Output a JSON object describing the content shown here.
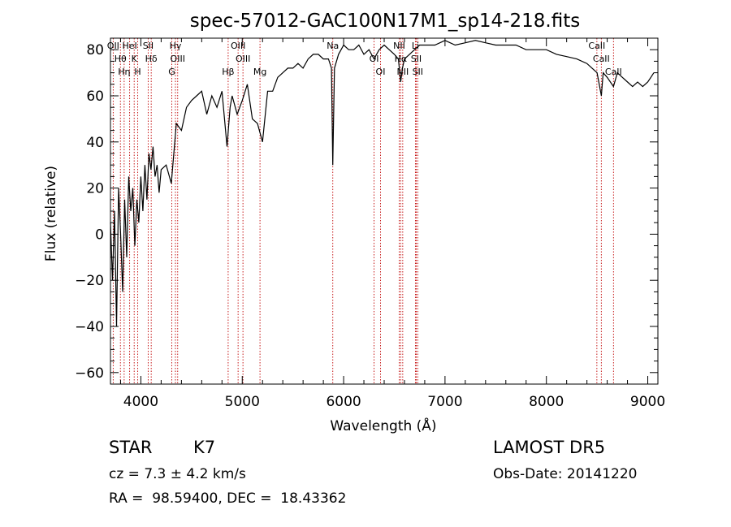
{
  "chart_data": {
    "type": "line",
    "title": "spec-57012-GAC100N17M1_sp14-218.fits",
    "xlabel": "Wavelength (Å)",
    "ylabel": "Flux (relative)",
    "xlim": [
      3700,
      9100
    ],
    "ylim": [
      -65,
      85
    ],
    "xticks": [
      "4000",
      "5000",
      "6000",
      "7000",
      "8000",
      "9000"
    ],
    "yticks": [
      "-60",
      "-40",
      "-20",
      "0",
      "20",
      "40",
      "60",
      "80"
    ],
    "line_color": "#000000",
    "marker_color": "#c00000",
    "series": [
      {
        "x": [
          3700,
          3720,
          3740,
          3760,
          3780,
          3800,
          3820,
          3840,
          3860,
          3880,
          3900,
          3920,
          3940,
          3960,
          3980,
          4000,
          4020,
          4040,
          4060,
          4080,
          4100,
          4120,
          4140,
          4160,
          4180,
          4200,
          4250,
          4300,
          4350,
          4400,
          4450,
          4500,
          4550,
          4600,
          4650,
          4700,
          4750,
          4800,
          4850,
          4880,
          4900,
          4950,
          5000,
          5050,
          5100,
          5150,
          5200,
          5250,
          5300,
          5350,
          5400,
          5450,
          5500,
          5550,
          5600,
          5650,
          5700,
          5750,
          5800,
          5850,
          5880,
          5893,
          5910,
          5950,
          6000,
          6050,
          6100,
          6150,
          6200,
          6250,
          6300,
          6350,
          6400,
          6450,
          6500,
          6540,
          6563,
          6580,
          6600,
          6650,
          6700,
          6750,
          6800,
          6900,
          7000,
          7100,
          7200,
          7300,
          7400,
          7500,
          7600,
          7700,
          7800,
          7900,
          8000,
          8100,
          8200,
          8300,
          8400,
          8450,
          8500,
          8542,
          8560,
          8600,
          8662,
          8700,
          8750,
          8800,
          8850,
          8900,
          8950,
          9000,
          9030,
          9060
        ],
        "y": [
          5,
          -20,
          10,
          -40,
          20,
          0,
          -25,
          15,
          -10,
          25,
          10,
          20,
          -5,
          15,
          5,
          25,
          10,
          30,
          15,
          35,
          28,
          38,
          25,
          30,
          18,
          28,
          30,
          22,
          48,
          45,
          55,
          58,
          60,
          62,
          52,
          60,
          55,
          62,
          38,
          55,
          60,
          52,
          58,
          65,
          50,
          48,
          40,
          62,
          62,
          68,
          70,
          72,
          72,
          74,
          72,
          76,
          78,
          78,
          76,
          76,
          72,
          30,
          72,
          78,
          82,
          80,
          80,
          82,
          78,
          80,
          76,
          80,
          82,
          80,
          78,
          76,
          66,
          72,
          76,
          78,
          80,
          82,
          82,
          82,
          84,
          82,
          83,
          84,
          83,
          82,
          82,
          82,
          80,
          80,
          80,
          78,
          77,
          76,
          74,
          72,
          70,
          60,
          70,
          68,
          64,
          70,
          68,
          66,
          64,
          66,
          64,
          66,
          68,
          70
        ]
      }
    ],
    "line_markers": [
      {
        "x": 3727,
        "label": "OII"
      },
      {
        "x": 3798,
        "label": "Hθ"
      },
      {
        "x": 3835,
        "label": "Hη"
      },
      {
        "x": 3889,
        "label": "HeI"
      },
      {
        "x": 3934,
        "label": "K"
      },
      {
        "x": 3969,
        "label": "H"
      },
      {
        "x": 4072,
        "label": "SII"
      },
      {
        "x": 4102,
        "label": "Hδ"
      },
      {
        "x": 4305,
        "label": "G"
      },
      {
        "x": 4341,
        "label": "Hγ"
      },
      {
        "x": 4363,
        "label": "OIII"
      },
      {
        "x": 4861,
        "label": "Hβ"
      },
      {
        "x": 4959,
        "label": "OIII"
      },
      {
        "x": 5007,
        "label": "OIII"
      },
      {
        "x": 5175,
        "label": "Mg"
      },
      {
        "x": 5893,
        "label": "Na"
      },
      {
        "x": 6300,
        "label": "OI"
      },
      {
        "x": 6364,
        "label": "OI"
      },
      {
        "x": 6548,
        "label": "NII"
      },
      {
        "x": 6563,
        "label": "Hα"
      },
      {
        "x": 6583,
        "label": "NII"
      },
      {
        "x": 6708,
        "label": "Li"
      },
      {
        "x": 6716,
        "label": "SII"
      },
      {
        "x": 6731,
        "label": "SII"
      },
      {
        "x": 8498,
        "label": "CaII"
      },
      {
        "x": 8542,
        "label": "CaII"
      },
      {
        "x": 8662,
        "label": "CaII"
      }
    ]
  },
  "info": {
    "object_class": "STAR",
    "subclass": "K7",
    "survey": "LAMOST DR5",
    "redshift": "cz = 7.3 ± 4.2 km/s",
    "obs_date": "Obs-Date: 20141220",
    "coords": "RA =  98.59400, DEC =  18.43362"
  }
}
